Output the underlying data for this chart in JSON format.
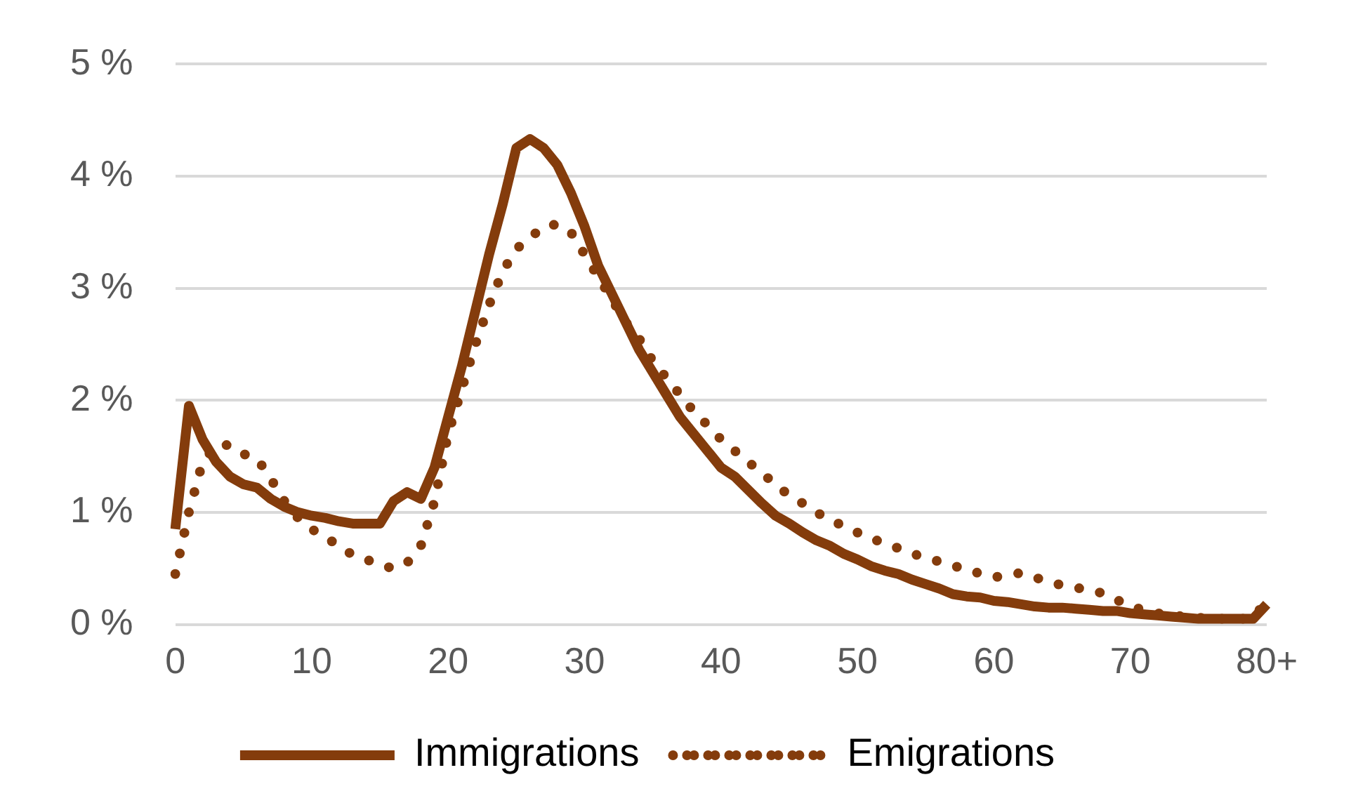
{
  "chart_data": {
    "type": "line",
    "categories": [
      "0",
      null,
      null,
      null,
      null,
      null,
      null,
      null,
      null,
      null,
      "10",
      null,
      null,
      null,
      null,
      null,
      null,
      null,
      null,
      null,
      "20",
      null,
      null,
      null,
      null,
      null,
      null,
      null,
      null,
      null,
      "30",
      null,
      null,
      null,
      null,
      null,
      null,
      null,
      null,
      null,
      "40",
      null,
      null,
      null,
      null,
      null,
      null,
      null,
      null,
      null,
      "50",
      null,
      null,
      null,
      null,
      null,
      null,
      null,
      null,
      null,
      "60",
      null,
      null,
      null,
      null,
      null,
      null,
      null,
      null,
      null,
      "70",
      null,
      null,
      null,
      null,
      null,
      null,
      null,
      null,
      null,
      "80+"
    ],
    "series": [
      {
        "name": "Immigrations",
        "color": "#843c0c",
        "line_style": "solid",
        "values": [
          0.85,
          1.95,
          1.65,
          1.45,
          1.32,
          1.25,
          1.22,
          1.12,
          1.05,
          1.0,
          0.97,
          0.95,
          0.92,
          0.9,
          0.9,
          0.9,
          1.1,
          1.18,
          1.12,
          1.4,
          1.85,
          2.3,
          2.8,
          3.3,
          3.75,
          4.25,
          4.33,
          4.25,
          4.1,
          3.85,
          3.55,
          3.2,
          2.95,
          2.7,
          2.45,
          2.25,
          2.05,
          1.85,
          1.7,
          1.55,
          1.4,
          1.32,
          1.2,
          1.08,
          0.97,
          0.9,
          0.82,
          0.75,
          0.7,
          0.63,
          0.58,
          0.52,
          0.48,
          0.45,
          0.4,
          0.36,
          0.32,
          0.27,
          0.25,
          0.24,
          0.21,
          0.2,
          0.18,
          0.16,
          0.15,
          0.15,
          0.14,
          0.13,
          0.12,
          0.12,
          0.1,
          0.09,
          0.08,
          0.07,
          0.06,
          0.05,
          0.05,
          0.05,
          0.05,
          0.05,
          0.18
        ]
      },
      {
        "name": "Emigrations",
        "color": "#843c0c",
        "line_style": "dotted",
        "values": [
          0.45,
          1.0,
          1.45,
          1.6,
          1.6,
          1.52,
          1.48,
          1.3,
          1.1,
          0.95,
          0.85,
          0.78,
          0.7,
          0.62,
          0.58,
          0.53,
          0.5,
          0.55,
          0.7,
          1.1,
          1.7,
          2.1,
          2.5,
          2.85,
          3.15,
          3.35,
          3.45,
          3.55,
          3.57,
          3.5,
          3.3,
          3.1,
          2.9,
          2.7,
          2.55,
          2.35,
          2.2,
          2.05,
          1.9,
          1.78,
          1.65,
          1.55,
          1.45,
          1.35,
          1.25,
          1.15,
          1.08,
          1.0,
          0.93,
          0.88,
          0.82,
          0.77,
          0.72,
          0.68,
          0.63,
          0.6,
          0.56,
          0.52,
          0.5,
          0.45,
          0.42,
          0.44,
          0.46,
          0.42,
          0.38,
          0.35,
          0.33,
          0.3,
          0.28,
          0.22,
          0.16,
          0.13,
          0.1,
          0.08,
          0.07,
          0.06,
          0.05,
          0.05,
          0.05,
          0.05,
          0.22
        ]
      }
    ],
    "ylim": [
      0,
      5
    ],
    "yticks": [
      {
        "value": 0,
        "label": "0 %"
      },
      {
        "value": 1,
        "label": "1 %"
      },
      {
        "value": 2,
        "label": "2 %"
      },
      {
        "value": 3,
        "label": "3 %"
      },
      {
        "value": 4,
        "label": "4 %"
      },
      {
        "value": 5,
        "label": "5 %"
      }
    ],
    "grid": "y",
    "legend": "bottom",
    "marker": "none"
  }
}
